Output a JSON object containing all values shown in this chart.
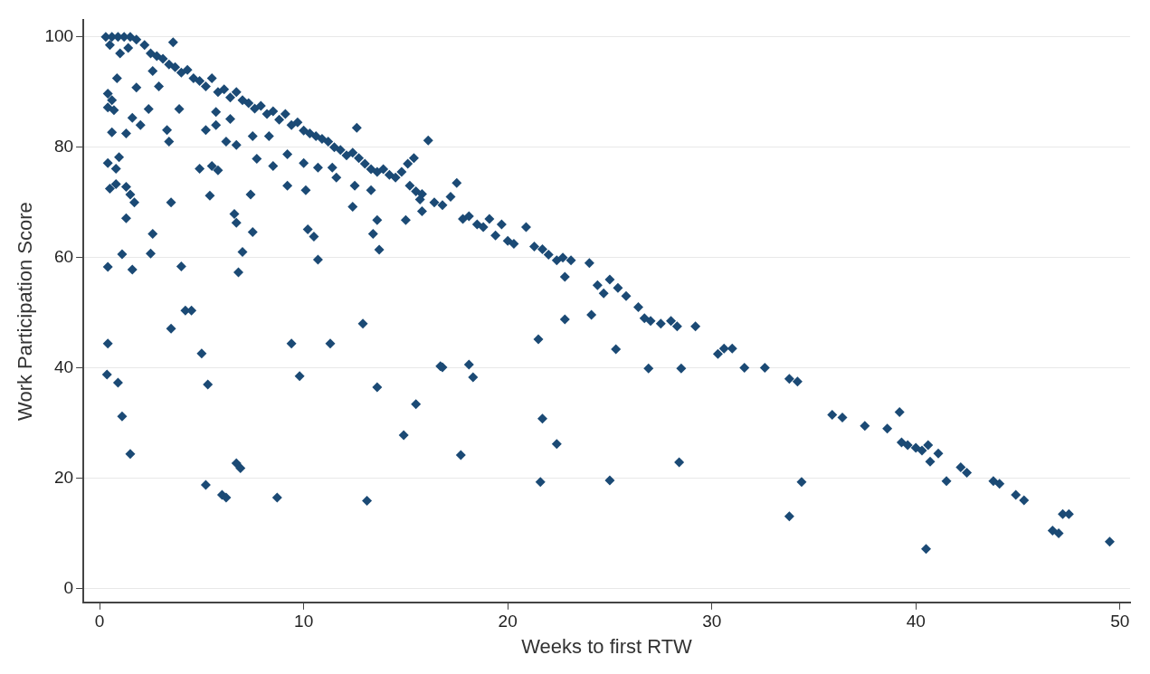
{
  "chart_data": {
    "type": "scatter",
    "xlabel": "Weeks to first RTW",
    "ylabel": "Work Participation Score",
    "xlim": [
      -0.8,
      50.5
    ],
    "ylim": [
      -2.5,
      103
    ],
    "xticks": [
      0,
      10,
      20,
      30,
      40,
      50
    ],
    "yticks": [
      0,
      20,
      40,
      60,
      80,
      100
    ],
    "grid": "y",
    "marker": "diamond",
    "series": [
      {
        "color": "#1b4a75",
        "x": [
          0.3,
          0.6,
          0.9,
          1.2,
          1.5,
          1.8,
          0.5,
          1.0,
          1.4,
          2.2,
          2.5,
          2.8,
          3.1,
          3.4,
          3.7,
          4.0,
          4.3,
          4.6,
          4.9,
          5.2,
          5.5,
          5.8,
          6.1,
          6.4,
          6.7,
          7.0,
          7.3,
          7.6,
          7.9,
          8.2,
          8.5,
          8.8,
          9.1,
          9.4,
          9.7,
          10.0,
          10.3,
          10.6,
          10.9,
          11.2,
          11.5,
          11.8,
          12.1,
          12.4,
          12.7,
          13.0,
          13.3,
          13.6,
          13.9,
          14.2,
          14.5,
          14.8,
          15.1,
          15.4,
          15.2,
          15.5,
          15.8,
          16.4,
          16.8,
          17.2,
          17.5,
          17.8,
          18.1,
          18.5,
          18.8,
          19.1,
          19.4,
          19.7,
          20.0,
          20.3,
          20.9,
          21.3,
          21.7,
          22.0,
          22.4,
          22.7,
          23.1,
          22.8,
          24.0,
          24.4,
          24.7,
          25.0,
          25.4,
          25.8,
          26.4,
          26.7,
          27.0,
          27.5,
          28.0,
          28.3,
          29.2,
          30.3,
          30.6,
          31.0,
          31.6,
          32.6,
          33.8,
          34.2,
          35.9,
          36.4,
          37.5,
          38.6,
          39.2,
          39.3,
          39.6,
          40.0,
          40.3,
          40.6,
          41.1,
          40.7,
          41.5,
          42.2,
          42.5,
          43.8,
          44.1,
          44.9,
          45.3,
          46.7,
          47.0,
          47.2,
          47.5,
          49.5,
          0.4,
          0.36,
          0.9,
          1.1,
          1.5,
          3.5,
          5.0,
          5.3,
          5.2,
          6.0,
          6.2,
          6.7,
          6.9,
          8.7,
          9.4,
          9.8,
          11.3,
          12.9,
          13.1,
          13.6,
          14.9,
          15.5,
          16.7,
          4.2,
          4.5,
          3.6,
          0.85,
          1.8,
          2.9,
          2.6,
          0.4,
          0.6,
          0.4,
          0.7,
          2.4,
          3.9,
          1.6,
          2.0,
          0.6,
          1.3,
          3.3,
          3.4,
          5.7,
          6.4,
          5.2,
          5.7,
          6.2,
          6.7,
          7.5,
          8.3,
          7.7,
          8.5,
          9.2,
          10.0,
          10.7,
          11.4,
          11.6,
          12.6,
          16.1,
          12.5,
          13.3,
          12.4,
          13.6,
          13.4,
          13.7,
          15.0,
          15.7,
          15.8,
          0.4,
          0.8,
          0.95,
          0.5,
          0.8,
          1.3,
          1.5,
          1.7,
          1.3,
          3.5,
          2.6,
          2.5,
          1.1,
          0.4,
          1.6,
          4.0,
          4.9,
          5.5,
          5.8,
          5.4,
          7.4,
          6.6,
          6.7,
          7.5,
          7.0,
          6.8,
          9.2,
          10.1,
          10.2,
          10.5,
          10.7,
          16.8,
          18.1,
          18.3,
          17.7,
          21.5,
          21.6,
          21.7,
          22.4,
          22.8,
          24.1,
          25.0,
          25.3,
          26.9,
          28.5,
          28.4,
          33.8,
          34.4,
          40.5
        ],
        "values": [
          100,
          100,
          100,
          100,
          100,
          99.5,
          98.5,
          97,
          98,
          98.5,
          97,
          96.5,
          96,
          95,
          94.5,
          93.5,
          94,
          92.5,
          92,
          91,
          92.5,
          90,
          90.5,
          89,
          90,
          88.5,
          88,
          87,
          87.5,
          86,
          86.5,
          85,
          86,
          84,
          84.5,
          83,
          82.5,
          82,
          81.5,
          81,
          80,
          79.5,
          78.5,
          79,
          78,
          77,
          76,
          75.5,
          76,
          75,
          74.5,
          75.5,
          77,
          78,
          73,
          72,
          71.5,
          70,
          69.5,
          71,
          73.5,
          67,
          67.5,
          66,
          65.5,
          67,
          64,
          66,
          63,
          62.5,
          65.5,
          62,
          61.5,
          60.5,
          59.5,
          60,
          59.5,
          56.5,
          59,
          55,
          53.5,
          56,
          54.5,
          53,
          51,
          49,
          48.5,
          48,
          48.5,
          47.5,
          47.5,
          42.5,
          43.5,
          43.5,
          40,
          40,
          38,
          37.5,
          31.5,
          31,
          29.5,
          29,
          32,
          26.5,
          26,
          25.5,
          25,
          26,
          24.5,
          23,
          19.5,
          22,
          21,
          19.5,
          19,
          17,
          16,
          10.5,
          10,
          13.5,
          13.5,
          8.5,
          44.4,
          38.8,
          37.3,
          31.2,
          24.4,
          47.1,
          42.6,
          37.0,
          18.8,
          17.0,
          16.5,
          22.7,
          21.8,
          16.5,
          44.4,
          38.5,
          44.4,
          48.0,
          15.9,
          36.5,
          27.8,
          33.4,
          40.3,
          50.4,
          50.4,
          99.0,
          92.5,
          90.8,
          91.0,
          93.8,
          89.7,
          88.5,
          87.2,
          86.7,
          86.9,
          86.9,
          85.3,
          84.0,
          82.7,
          82.5,
          83.1,
          81.0,
          86.4,
          85.1,
          83.1,
          84.0,
          81.0,
          80.4,
          82.0,
          82.0,
          77.9,
          76.6,
          78.7,
          77.1,
          76.3,
          76.3,
          74.5,
          83.5,
          81.2,
          73.0,
          72.2,
          69.2,
          66.8,
          64.3,
          61.4,
          66.8,
          70.5,
          68.4,
          77.1,
          76.1,
          78.2,
          72.5,
          73.3,
          72.8,
          71.4,
          70.0,
          67.1,
          70.0,
          64.3,
          60.7,
          60.6,
          58.3,
          57.8,
          58.4,
          76.1,
          76.6,
          75.8,
          71.2,
          71.4,
          67.9,
          66.3,
          64.6,
          61.0,
          57.3,
          73.0,
          72.2,
          65.1,
          63.8,
          59.6,
          40.1,
          40.6,
          38.3,
          24.2,
          45.2,
          19.3,
          30.8,
          26.2,
          48.8,
          49.6,
          19.6,
          43.4,
          39.9,
          39.9,
          22.9,
          13.1,
          19.3,
          7.2
        ]
      }
    ]
  }
}
